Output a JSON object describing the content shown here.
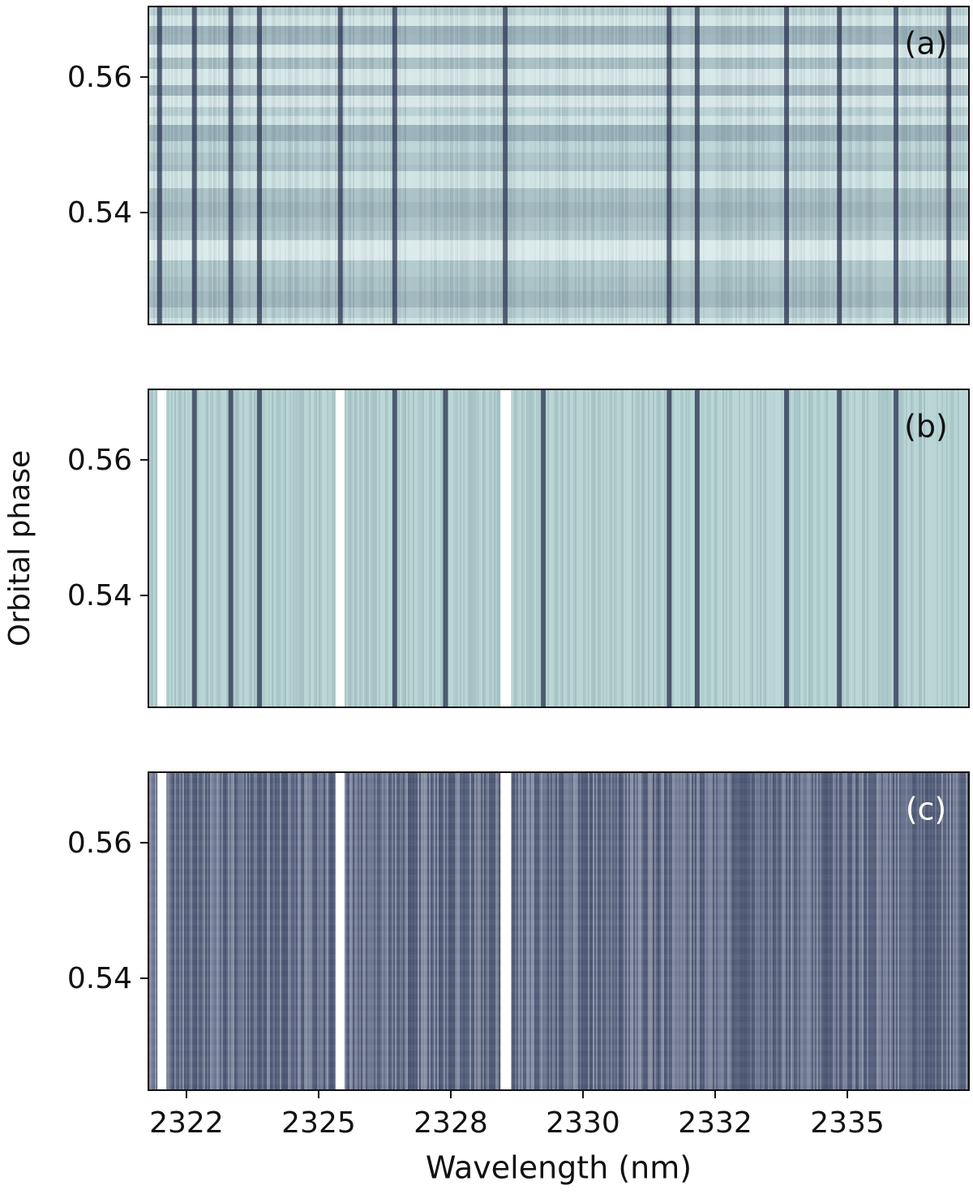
{
  "chart_data": [
    {
      "type": "heatmap",
      "panel_label": "(a)",
      "label_color": "#111111",
      "xlim": [
        2321.78,
        2337.3
      ],
      "ylim": [
        0.5235,
        0.5704
      ],
      "yticks": [
        0.54,
        0.56
      ],
      "base_color": "#c3dcdc",
      "line_color": "#2a3350",
      "banded": true,
      "lines": [
        2321.99,
        2322.65,
        2323.34,
        2323.88,
        2325.41,
        2326.44,
        2328.53,
        2331.63,
        2332.16,
        2333.85,
        2334.85,
        2335.92,
        2336.92
      ]
    },
    {
      "type": "heatmap",
      "panel_label": "(b)",
      "label_color": "#111111",
      "ylabel": "Orbital phase",
      "xlim": [
        2321.78,
        2337.3
      ],
      "ylim": [
        0.5235,
        0.5704
      ],
      "yticks": [
        0.54,
        0.56
      ],
      "base_color": "#b5d3d3",
      "line_color": "#2a3350",
      "banded": false,
      "lines": [
        2322.65,
        2323.34,
        2323.88,
        2326.44,
        2327.4,
        2329.25,
        2331.63,
        2332.16,
        2333.85,
        2334.85,
        2335.92
      ],
      "masked": [
        [
          2321.95,
          2322.12
        ],
        [
          2325.32,
          2325.49
        ],
        [
          2328.44,
          2328.64
        ]
      ]
    },
    {
      "type": "heatmap",
      "panel_label": "(c)",
      "label_color": "#ffffff",
      "xlabel": "Wavelength (nm)",
      "xlim": [
        2321.78,
        2337.3
      ],
      "ylim": [
        0.5235,
        0.5704
      ],
      "yticks": [
        0.54,
        0.56
      ],
      "xticks": [
        {
          "value": 2322.5,
          "label": "2322"
        },
        2325,
        {
          "value": 2327.5,
          "label": "2328"
        },
        2330,
        {
          "value": 2332.5,
          "label": "2332"
        },
        2335
      ],
      "base_color": "#5d6884",
      "line_color": "#3c4462",
      "banded": false,
      "lines": [],
      "masked": [
        [
          2321.95,
          2322.12
        ],
        [
          2325.32,
          2325.49
        ],
        [
          2328.44,
          2328.64
        ]
      ]
    }
  ]
}
